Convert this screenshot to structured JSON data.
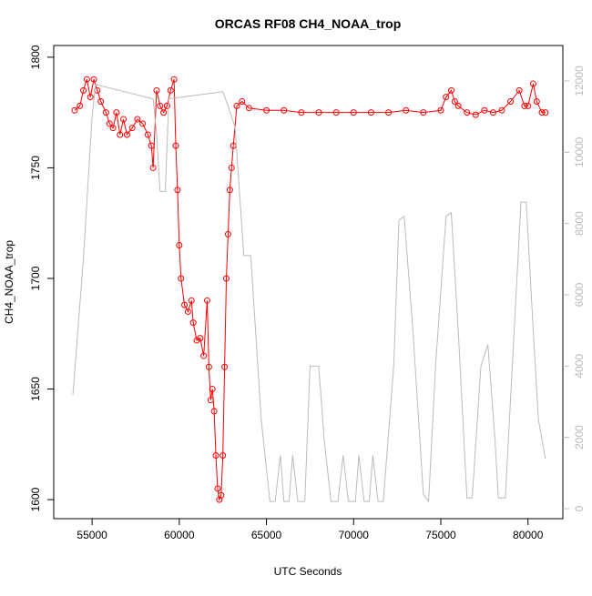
{
  "chart_data": {
    "type": "line",
    "title": "ORCAS RF08 CH4_NOAA_trop",
    "x_label": "UTC Seconds",
    "y_label": "CH4_NOAA_trop",
    "xlim": [
      52800,
      82000
    ],
    "ylim": [
      1591.4,
      1805.3
    ],
    "y2lim": [
      -281,
      12996
    ],
    "xticks": [
      55000,
      60000,
      65000,
      70000,
      75000,
      80000
    ],
    "yticks": [
      1600,
      1650,
      1700,
      1750,
      1800
    ],
    "y2ticks": [
      0,
      2000,
      4000,
      6000,
      8000,
      10000,
      12000
    ],
    "y2_color": "#bbbbbb",
    "series": [
      {
        "color": "#ff0000",
        "marker": "circle",
        "x": [
          54000,
          54300,
          54500,
          54700,
          54900,
          55100,
          55300,
          55500,
          55800,
          56000,
          56200,
          56400,
          56600,
          56800,
          57000,
          57300,
          57600,
          57900,
          58200,
          58400,
          58500,
          58700,
          58900,
          59100,
          59300,
          59500,
          59700,
          59800,
          59900,
          60000,
          60100,
          60300,
          60500,
          60700,
          60800,
          61000,
          61200,
          61400,
          61600,
          61700,
          61800,
          61900,
          62000,
          62100,
          62200,
          62300,
          62400,
          62500,
          62600,
          62700,
          62800,
          62900,
          63000,
          63100,
          63300,
          63600,
          64000,
          65000,
          66000,
          67000,
          68000,
          69000,
          70000,
          71000,
          72000,
          73000,
          74000,
          75000,
          75300,
          75600,
          75800,
          76000,
          76500,
          77000,
          77500,
          78000,
          78500,
          79000,
          79500,
          79800,
          80000,
          80300,
          80500,
          80800,
          81000
        ],
        "values": [
          1776,
          1778,
          1785,
          1790,
          1782,
          1790,
          1785,
          1780,
          1775,
          1770,
          1768,
          1775,
          1765,
          1772,
          1765,
          1768,
          1772,
          1770,
          1765,
          1760,
          1750,
          1785,
          1778,
          1775,
          1778,
          1785,
          1790,
          1760,
          1740,
          1715,
          1700,
          1688,
          1685,
          1690,
          1680,
          1672,
          1673,
          1665,
          1690,
          1660,
          1645,
          1650,
          1640,
          1620,
          1605,
          1600,
          1602,
          1620,
          1660,
          1700,
          1720,
          1740,
          1750,
          1760,
          1778,
          1780,
          1777,
          1776,
          1776,
          1775,
          1775,
          1775,
          1775,
          1775,
          1775,
          1776,
          1775,
          1776,
          1782,
          1785,
          1780,
          1778,
          1775,
          1774,
          1776,
          1775,
          1776,
          1780,
          1785,
          1778,
          1778,
          1788,
          1780,
          1775,
          1775
        ]
      },
      {
        "color": "#bbbbbb",
        "axis": "y2",
        "x": [
          53900,
          54500,
          55000,
          55200,
          58500,
          58700,
          58900,
          59200,
          59400,
          62500,
          62800,
          63200,
          63700,
          64100,
          64700,
          65200,
          65500,
          65800,
          66000,
          66300,
          66500,
          66800,
          67200,
          67500,
          68000,
          68300,
          68700,
          69100,
          69400,
          69700,
          70100,
          70300,
          70600,
          70900,
          71100,
          71400,
          71700,
          72300,
          72600,
          72900,
          73400,
          74000,
          74300,
          74700,
          75300,
          75600,
          76000,
          76500,
          76800,
          77300,
          77700,
          78100,
          78300,
          78700,
          79100,
          79600,
          79900,
          80300,
          80600,
          81000
        ],
        "values": [
          3200,
          7000,
          11000,
          11900,
          11500,
          10500,
          8900,
          8900,
          11500,
          11700,
          11300,
          10700,
          7100,
          7100,
          2500,
          200,
          200,
          1500,
          200,
          200,
          1500,
          200,
          200,
          4000,
          4000,
          2000,
          200,
          200,
          1500,
          200,
          200,
          1500,
          200,
          200,
          1500,
          200,
          200,
          4000,
          8100,
          8200,
          5000,
          400,
          200,
          4000,
          8200,
          8300,
          5000,
          300,
          300,
          4000,
          4600,
          2000,
          300,
          300,
          4000,
          8600,
          8600,
          5000,
          2500,
          1400
        ]
      }
    ]
  }
}
